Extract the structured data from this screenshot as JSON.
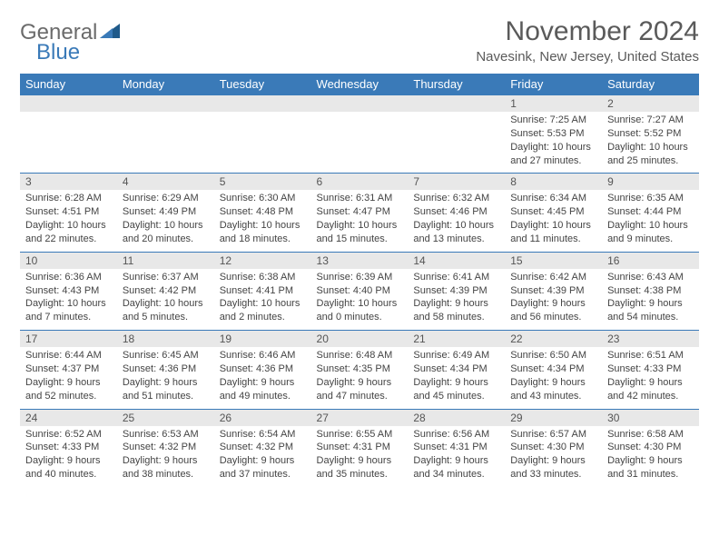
{
  "logo": {
    "general": "General",
    "blue": "Blue"
  },
  "title": "November 2024",
  "location": "Navesink, New Jersey, United States",
  "colors": {
    "header_bg": "#3a7ab8",
    "header_text": "#ffffff",
    "daynum_bg": "#e8e8e8",
    "rule": "#3a7ab8",
    "logo_gray": "#6b6b6b",
    "logo_blue": "#3a7ab8"
  },
  "weekdays": [
    "Sunday",
    "Monday",
    "Tuesday",
    "Wednesday",
    "Thursday",
    "Friday",
    "Saturday"
  ],
  "weeks": [
    [
      {
        "num": "",
        "sunrise": "",
        "sunset": "",
        "daylight": ""
      },
      {
        "num": "",
        "sunrise": "",
        "sunset": "",
        "daylight": ""
      },
      {
        "num": "",
        "sunrise": "",
        "sunset": "",
        "daylight": ""
      },
      {
        "num": "",
        "sunrise": "",
        "sunset": "",
        "daylight": ""
      },
      {
        "num": "",
        "sunrise": "",
        "sunset": "",
        "daylight": ""
      },
      {
        "num": "1",
        "sunrise": "Sunrise: 7:25 AM",
        "sunset": "Sunset: 5:53 PM",
        "daylight": "Daylight: 10 hours and 27 minutes."
      },
      {
        "num": "2",
        "sunrise": "Sunrise: 7:27 AM",
        "sunset": "Sunset: 5:52 PM",
        "daylight": "Daylight: 10 hours and 25 minutes."
      }
    ],
    [
      {
        "num": "3",
        "sunrise": "Sunrise: 6:28 AM",
        "sunset": "Sunset: 4:51 PM",
        "daylight": "Daylight: 10 hours and 22 minutes."
      },
      {
        "num": "4",
        "sunrise": "Sunrise: 6:29 AM",
        "sunset": "Sunset: 4:49 PM",
        "daylight": "Daylight: 10 hours and 20 minutes."
      },
      {
        "num": "5",
        "sunrise": "Sunrise: 6:30 AM",
        "sunset": "Sunset: 4:48 PM",
        "daylight": "Daylight: 10 hours and 18 minutes."
      },
      {
        "num": "6",
        "sunrise": "Sunrise: 6:31 AM",
        "sunset": "Sunset: 4:47 PM",
        "daylight": "Daylight: 10 hours and 15 minutes."
      },
      {
        "num": "7",
        "sunrise": "Sunrise: 6:32 AM",
        "sunset": "Sunset: 4:46 PM",
        "daylight": "Daylight: 10 hours and 13 minutes."
      },
      {
        "num": "8",
        "sunrise": "Sunrise: 6:34 AM",
        "sunset": "Sunset: 4:45 PM",
        "daylight": "Daylight: 10 hours and 11 minutes."
      },
      {
        "num": "9",
        "sunrise": "Sunrise: 6:35 AM",
        "sunset": "Sunset: 4:44 PM",
        "daylight": "Daylight: 10 hours and 9 minutes."
      }
    ],
    [
      {
        "num": "10",
        "sunrise": "Sunrise: 6:36 AM",
        "sunset": "Sunset: 4:43 PM",
        "daylight": "Daylight: 10 hours and 7 minutes."
      },
      {
        "num": "11",
        "sunrise": "Sunrise: 6:37 AM",
        "sunset": "Sunset: 4:42 PM",
        "daylight": "Daylight: 10 hours and 5 minutes."
      },
      {
        "num": "12",
        "sunrise": "Sunrise: 6:38 AM",
        "sunset": "Sunset: 4:41 PM",
        "daylight": "Daylight: 10 hours and 2 minutes."
      },
      {
        "num": "13",
        "sunrise": "Sunrise: 6:39 AM",
        "sunset": "Sunset: 4:40 PM",
        "daylight": "Daylight: 10 hours and 0 minutes."
      },
      {
        "num": "14",
        "sunrise": "Sunrise: 6:41 AM",
        "sunset": "Sunset: 4:39 PM",
        "daylight": "Daylight: 9 hours and 58 minutes."
      },
      {
        "num": "15",
        "sunrise": "Sunrise: 6:42 AM",
        "sunset": "Sunset: 4:39 PM",
        "daylight": "Daylight: 9 hours and 56 minutes."
      },
      {
        "num": "16",
        "sunrise": "Sunrise: 6:43 AM",
        "sunset": "Sunset: 4:38 PM",
        "daylight": "Daylight: 9 hours and 54 minutes."
      }
    ],
    [
      {
        "num": "17",
        "sunrise": "Sunrise: 6:44 AM",
        "sunset": "Sunset: 4:37 PM",
        "daylight": "Daylight: 9 hours and 52 minutes."
      },
      {
        "num": "18",
        "sunrise": "Sunrise: 6:45 AM",
        "sunset": "Sunset: 4:36 PM",
        "daylight": "Daylight: 9 hours and 51 minutes."
      },
      {
        "num": "19",
        "sunrise": "Sunrise: 6:46 AM",
        "sunset": "Sunset: 4:36 PM",
        "daylight": "Daylight: 9 hours and 49 minutes."
      },
      {
        "num": "20",
        "sunrise": "Sunrise: 6:48 AM",
        "sunset": "Sunset: 4:35 PM",
        "daylight": "Daylight: 9 hours and 47 minutes."
      },
      {
        "num": "21",
        "sunrise": "Sunrise: 6:49 AM",
        "sunset": "Sunset: 4:34 PM",
        "daylight": "Daylight: 9 hours and 45 minutes."
      },
      {
        "num": "22",
        "sunrise": "Sunrise: 6:50 AM",
        "sunset": "Sunset: 4:34 PM",
        "daylight": "Daylight: 9 hours and 43 minutes."
      },
      {
        "num": "23",
        "sunrise": "Sunrise: 6:51 AM",
        "sunset": "Sunset: 4:33 PM",
        "daylight": "Daylight: 9 hours and 42 minutes."
      }
    ],
    [
      {
        "num": "24",
        "sunrise": "Sunrise: 6:52 AM",
        "sunset": "Sunset: 4:33 PM",
        "daylight": "Daylight: 9 hours and 40 minutes."
      },
      {
        "num": "25",
        "sunrise": "Sunrise: 6:53 AM",
        "sunset": "Sunset: 4:32 PM",
        "daylight": "Daylight: 9 hours and 38 minutes."
      },
      {
        "num": "26",
        "sunrise": "Sunrise: 6:54 AM",
        "sunset": "Sunset: 4:32 PM",
        "daylight": "Daylight: 9 hours and 37 minutes."
      },
      {
        "num": "27",
        "sunrise": "Sunrise: 6:55 AM",
        "sunset": "Sunset: 4:31 PM",
        "daylight": "Daylight: 9 hours and 35 minutes."
      },
      {
        "num": "28",
        "sunrise": "Sunrise: 6:56 AM",
        "sunset": "Sunset: 4:31 PM",
        "daylight": "Daylight: 9 hours and 34 minutes."
      },
      {
        "num": "29",
        "sunrise": "Sunrise: 6:57 AM",
        "sunset": "Sunset: 4:30 PM",
        "daylight": "Daylight: 9 hours and 33 minutes."
      },
      {
        "num": "30",
        "sunrise": "Sunrise: 6:58 AM",
        "sunset": "Sunset: 4:30 PM",
        "daylight": "Daylight: 9 hours and 31 minutes."
      }
    ]
  ]
}
